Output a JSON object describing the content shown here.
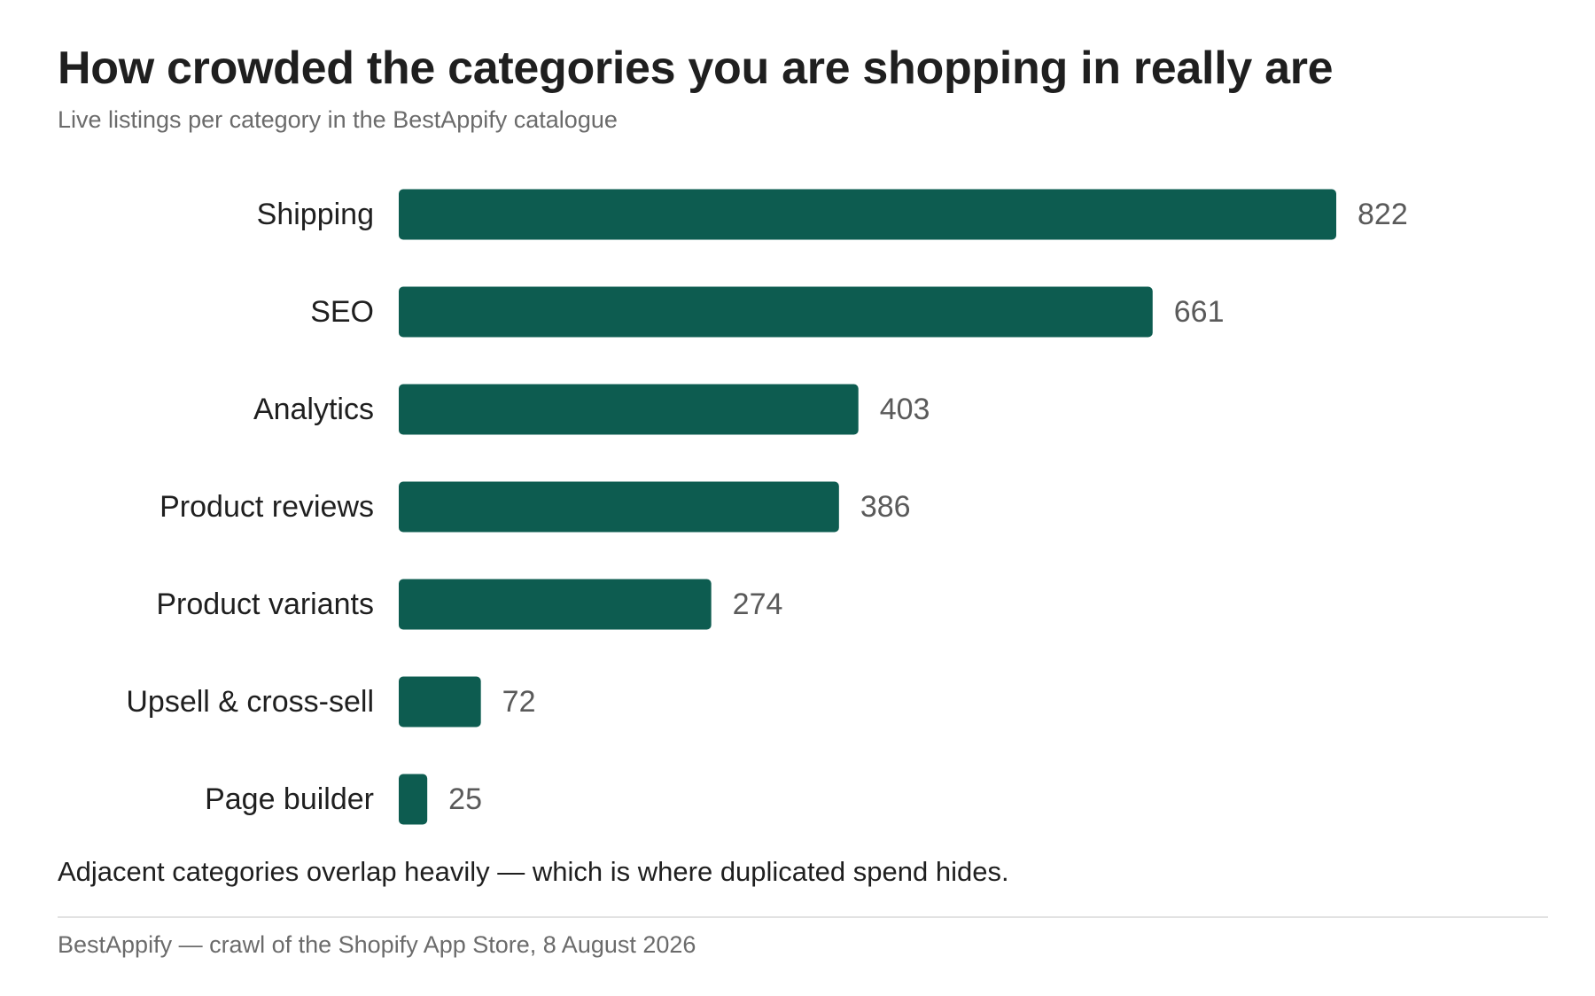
{
  "chart_data": {
    "type": "bar",
    "orientation": "horizontal",
    "title": "How crowded the categories you are shopping in really are",
    "subtitle": "Live listings per category in the BestAppify catalogue",
    "categories": [
      "Shipping",
      "SEO",
      "Analytics",
      "Product reviews",
      "Product variants",
      "Upsell & cross-sell",
      "Page builder"
    ],
    "values": [
      822,
      661,
      403,
      386,
      274,
      72,
      25
    ],
    "data_labels": [
      "822",
      "661",
      "403",
      "386",
      "274",
      "72",
      "25"
    ],
    "xlim": [
      0,
      822
    ],
    "grid": false,
    "legend": "none",
    "bar_color": "#0d5c50"
  },
  "note": "Adjacent categories overlap heavily — which is where duplicated spend hides.",
  "source": "BestAppify — crawl of the Shopify App Store, 8 August 2026",
  "colors": {
    "bar": "#0d5c50",
    "text": "#1f1f1f",
    "muted": "#6b6b6b",
    "value_label": "#5a5a5a",
    "rule": "#e2e2e2"
  }
}
